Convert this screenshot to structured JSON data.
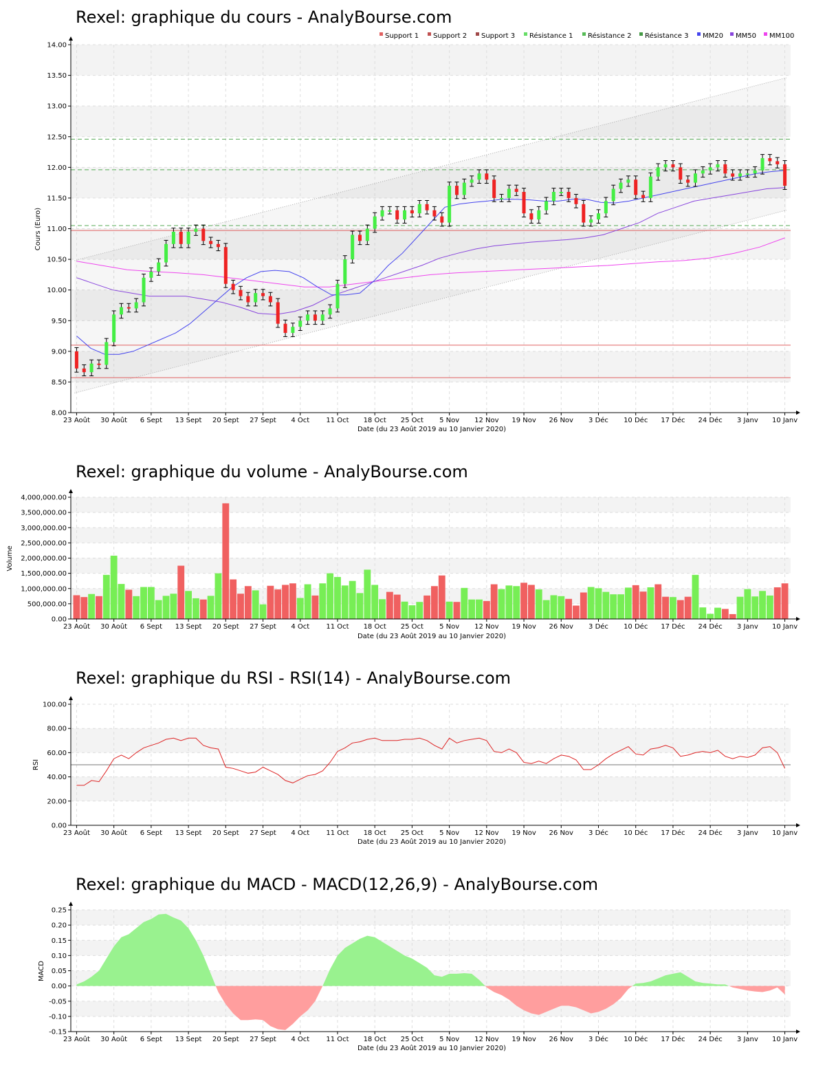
{
  "colors": {
    "up": "#44ee44",
    "down": "#ee2222",
    "up_soft": "#99f28f",
    "down_soft": "#ff9e9e",
    "support": "#e06060",
    "resistance": "#55aa55",
    "mm20": "#4444ee",
    "mm50": "#8844dd",
    "mm100": "#ee44ee",
    "rsi": "#dd2222"
  },
  "x_axis": {
    "label": "Date (du 23 Août 2019 au 10 Janvier 2020)",
    "ticks": [
      "23 Août",
      "30 Août",
      "6 Sept",
      "13 Sept",
      "20 Sept",
      "27 Sept",
      "4 Oct",
      "11 Oct",
      "18 Oct",
      "25 Oct",
      "5 Nov",
      "12 Nov",
      "19 Nov",
      "26 Nov",
      "3 Déc",
      "10 Déc",
      "17 Déc",
      "24 Déc",
      "3 Janv",
      "10 Janv"
    ],
    "tick_sessions": [
      0,
      5,
      10,
      15,
      20,
      25,
      30,
      35,
      40,
      45,
      50,
      55,
      60,
      65,
      70,
      75,
      80,
      85,
      90,
      95
    ]
  },
  "chart_data": [
    {
      "type": "candlestick",
      "title": "Rexel: graphique du cours - AnalyBourse.com",
      "ylabel": "Cours (Euro)",
      "ylim": [
        8.0,
        14.0
      ],
      "yticks": [
        "8.00",
        "8.50",
        "9.00",
        "9.50",
        "10.00",
        "10.50",
        "11.00",
        "11.50",
        "12.00",
        "12.50",
        "13.00",
        "13.50",
        "14.00"
      ],
      "legend": [
        {
          "name": "Support 1",
          "color": "#e06060"
        },
        {
          "name": "Support 2",
          "color": "#c05050"
        },
        {
          "name": "Support 3",
          "color": "#a04848"
        },
        {
          "name": "Résistance 1",
          "color": "#66dd66"
        },
        {
          "name": "Résistance 2",
          "color": "#55bb55"
        },
        {
          "name": "Résistance 3",
          "color": "#449944"
        },
        {
          "name": "MM20",
          "color": "#4444ee"
        },
        {
          "name": "MM50",
          "color": "#8844dd"
        },
        {
          "name": "MM100",
          "color": "#ee44ee"
        }
      ],
      "supports": [
        10.97,
        9.1,
        8.57
      ],
      "resistances": [
        12.46,
        11.96,
        11.05
      ],
      "close": [
        8.72,
        8.66,
        8.8,
        8.78,
        9.15,
        9.6,
        9.72,
        9.7,
        9.8,
        10.2,
        10.3,
        10.45,
        10.75,
        10.95,
        10.75,
        10.95,
        11.0,
        10.8,
        10.75,
        10.7,
        10.1,
        10.0,
        9.9,
        9.8,
        9.95,
        9.9,
        9.8,
        9.45,
        9.3,
        9.4,
        9.5,
        9.6,
        9.5,
        9.6,
        9.7,
        10.1,
        10.5,
        10.9,
        10.8,
        11.0,
        11.2,
        11.3,
        11.3,
        11.15,
        11.3,
        11.25,
        11.4,
        11.3,
        11.2,
        11.1,
        11.7,
        11.55,
        11.75,
        11.8,
        11.9,
        11.8,
        11.5,
        11.5,
        11.65,
        11.6,
        11.25,
        11.15,
        11.3,
        11.45,
        11.6,
        11.6,
        11.5,
        11.4,
        11.1,
        11.15,
        11.25,
        11.45,
        11.65,
        11.75,
        11.8,
        11.55,
        11.5,
        11.85,
        12.0,
        12.05,
        12.0,
        11.8,
        11.75,
        11.9,
        11.95,
        12.0,
        12.05,
        11.9,
        11.85,
        11.9,
        11.9,
        11.95,
        12.15,
        12.1,
        12.05,
        11.7
      ],
      "mm20": [
        9.25,
        9.05,
        8.95,
        8.95,
        9.0,
        9.1,
        9.2,
        9.3,
        9.45,
        9.65,
        9.85,
        10.05,
        10.2,
        10.3,
        10.32,
        10.3,
        10.2,
        10.05,
        9.92,
        9.92,
        9.95,
        10.15,
        10.4,
        10.6,
        10.85,
        11.1,
        11.35,
        11.4,
        11.43,
        11.45,
        11.48,
        11.48,
        11.47,
        11.45,
        11.45,
        11.48,
        11.48,
        11.43,
        11.42,
        11.45,
        11.5,
        11.55,
        11.6,
        11.65,
        11.7,
        11.75,
        11.8,
        11.85,
        11.9,
        11.93,
        11.95
      ],
      "mm50": [
        10.2,
        10.1,
        10.0,
        9.95,
        9.9,
        9.9,
        9.9,
        9.85,
        9.8,
        9.72,
        9.62,
        9.6,
        9.65,
        9.75,
        9.9,
        10.0,
        10.1,
        10.2,
        10.3,
        10.4,
        10.52,
        10.6,
        10.67,
        10.72,
        10.75,
        10.78,
        10.8,
        10.82,
        10.85,
        10.9,
        11.0,
        11.1,
        11.25,
        11.35,
        11.45,
        11.5,
        11.55,
        11.6,
        11.65,
        11.67
      ],
      "mm100": [
        10.47,
        10.4,
        10.33,
        10.3,
        10.28,
        10.25,
        10.2,
        10.15,
        10.1,
        10.05,
        10.05,
        10.1,
        10.15,
        10.2,
        10.25,
        10.28,
        10.3,
        10.32,
        10.34,
        10.36,
        10.38,
        10.4,
        10.43,
        10.46,
        10.48,
        10.52,
        10.6,
        10.7,
        10.85
      ],
      "channel_upper": [
        10.48,
        13.46
      ],
      "channel_lower": [
        8.32,
        11.3
      ]
    },
    {
      "type": "bar",
      "title": "Rexel: graphique du volume - AnalyBourse.com",
      "ylabel": "Volume",
      "ylim": [
        0,
        4000000
      ],
      "yticks": [
        "0.00",
        "500,000.00",
        "1,000,000.00",
        "1,500,000.00",
        "2,000,000.00",
        "2,500,000.00",
        "3,000,000.00",
        "3,500,000.00",
        "4,000,000.00"
      ],
      "values": [
        780000,
        720000,
        820000,
        750000,
        1450000,
        2080000,
        1150000,
        960000,
        750000,
        1050000,
        1050000,
        620000,
        760000,
        830000,
        1750000,
        920000,
        680000,
        640000,
        760000,
        1500000,
        3800000,
        1300000,
        830000,
        1080000,
        940000,
        480000,
        1090000,
        970000,
        1120000,
        1170000,
        690000,
        1140000,
        770000,
        1170000,
        1500000,
        1380000,
        1100000,
        1250000,
        850000,
        1620000,
        1120000,
        650000,
        890000,
        800000,
        570000,
        450000,
        560000,
        770000,
        1080000,
        1430000,
        570000,
        560000,
        1020000,
        640000,
        640000,
        590000,
        1140000,
        980000,
        1100000,
        1080000,
        1190000,
        1120000,
        970000,
        620000,
        780000,
        750000,
        660000,
        440000,
        870000,
        1050000,
        1010000,
        890000,
        810000,
        810000,
        1030000,
        1110000,
        900000,
        1040000,
        1140000,
        730000,
        720000,
        620000,
        730000,
        1450000,
        380000,
        170000,
        370000,
        330000,
        160000,
        730000,
        980000,
        740000,
        920000,
        770000,
        1040000,
        1170000
      ],
      "up": [
        0,
        0,
        1,
        0,
        1,
        1,
        1,
        0,
        1,
        1,
        1,
        1,
        1,
        1,
        0,
        1,
        1,
        0,
        1,
        1,
        0,
        0,
        0,
        0,
        1,
        1,
        0,
        0,
        0,
        0,
        1,
        1,
        0,
        1,
        1,
        1,
        1,
        1,
        1,
        1,
        1,
        1,
        0,
        0,
        1,
        1,
        1,
        0,
        0,
        0,
        1,
        0,
        1,
        1,
        1,
        0,
        0,
        1,
        1,
        1,
        0,
        0,
        1,
        1,
        1,
        1,
        0,
        0,
        0,
        1,
        1,
        1,
        1,
        1,
        1,
        0,
        0,
        1,
        0,
        0,
        1,
        0,
        0,
        1,
        1,
        1,
        1,
        0,
        0,
        1,
        1,
        1,
        1,
        1,
        0,
        0
      ]
    },
    {
      "type": "line",
      "title": "Rexel: graphique du RSI - RSI(14) - AnalyBourse.com",
      "ylabel": "RSI",
      "ylim": [
        0,
        100
      ],
      "yticks": [
        "0.00",
        "20.00",
        "40.00",
        "60.00",
        "80.00",
        "100.00"
      ],
      "reference": 50,
      "values": [
        33,
        33,
        37,
        36,
        45,
        55,
        58,
        55,
        60,
        64,
        66,
        68,
        71,
        72,
        70,
        72,
        72,
        66,
        64,
        63,
        48,
        47,
        45,
        43,
        44,
        48,
        45,
        42,
        37,
        35,
        38,
        41,
        42,
        45,
        52,
        61,
        64,
        68,
        69,
        71,
        72,
        70,
        70,
        70,
        71,
        71,
        72,
        70,
        66,
        63,
        72,
        68,
        70,
        71,
        72,
        70,
        61,
        60,
        63,
        60,
        52,
        51,
        53,
        51,
        55,
        58,
        57,
        54,
        46,
        46,
        50,
        55,
        59,
        62,
        65,
        59,
        58,
        63,
        64,
        66,
        64,
        57,
        58,
        60,
        61,
        60,
        62,
        57,
        55,
        57,
        56,
        58,
        64,
        65,
        60,
        47
      ]
    },
    {
      "type": "area",
      "title": "Rexel: graphique du MACD - MACD(12,26,9) - AnalyBourse.com",
      "ylabel": "MACD",
      "ylim": [
        -0.15,
        0.25
      ],
      "yticks": [
        "-0.15",
        "-0.10",
        "-0.05",
        "0.00",
        "0.05",
        "0.10",
        "0.15",
        "0.20",
        "0.25"
      ],
      "values": [
        0.005,
        0.015,
        0.03,
        0.05,
        0.09,
        0.13,
        0.16,
        0.17,
        0.19,
        0.21,
        0.22,
        0.235,
        0.237,
        0.225,
        0.215,
        0.19,
        0.15,
        0.1,
        0.04,
        -0.02,
        -0.06,
        -0.09,
        -0.112,
        -0.112,
        -0.11,
        -0.112,
        -0.132,
        -0.142,
        -0.145,
        -0.125,
        -0.1,
        -0.08,
        -0.05,
        0.0,
        0.055,
        0.1,
        0.125,
        0.14,
        0.155,
        0.165,
        0.16,
        0.145,
        0.13,
        0.115,
        0.1,
        0.09,
        0.075,
        0.06,
        0.035,
        0.03,
        0.04,
        0.04,
        0.042,
        0.04,
        0.02,
        -0.005,
        -0.02,
        -0.03,
        -0.045,
        -0.065,
        -0.08,
        -0.09,
        -0.095,
        -0.085,
        -0.075,
        -0.065,
        -0.065,
        -0.07,
        -0.08,
        -0.09,
        -0.085,
        -0.075,
        -0.06,
        -0.04,
        -0.01,
        0.008,
        0.01,
        0.015,
        0.025,
        0.035,
        0.04,
        0.045,
        0.03,
        0.015,
        0.01,
        0.008,
        0.005,
        0.005,
        -0.005,
        -0.01,
        -0.015,
        -0.018,
        -0.02,
        -0.015,
        -0.005,
        -0.028
      ]
    }
  ]
}
